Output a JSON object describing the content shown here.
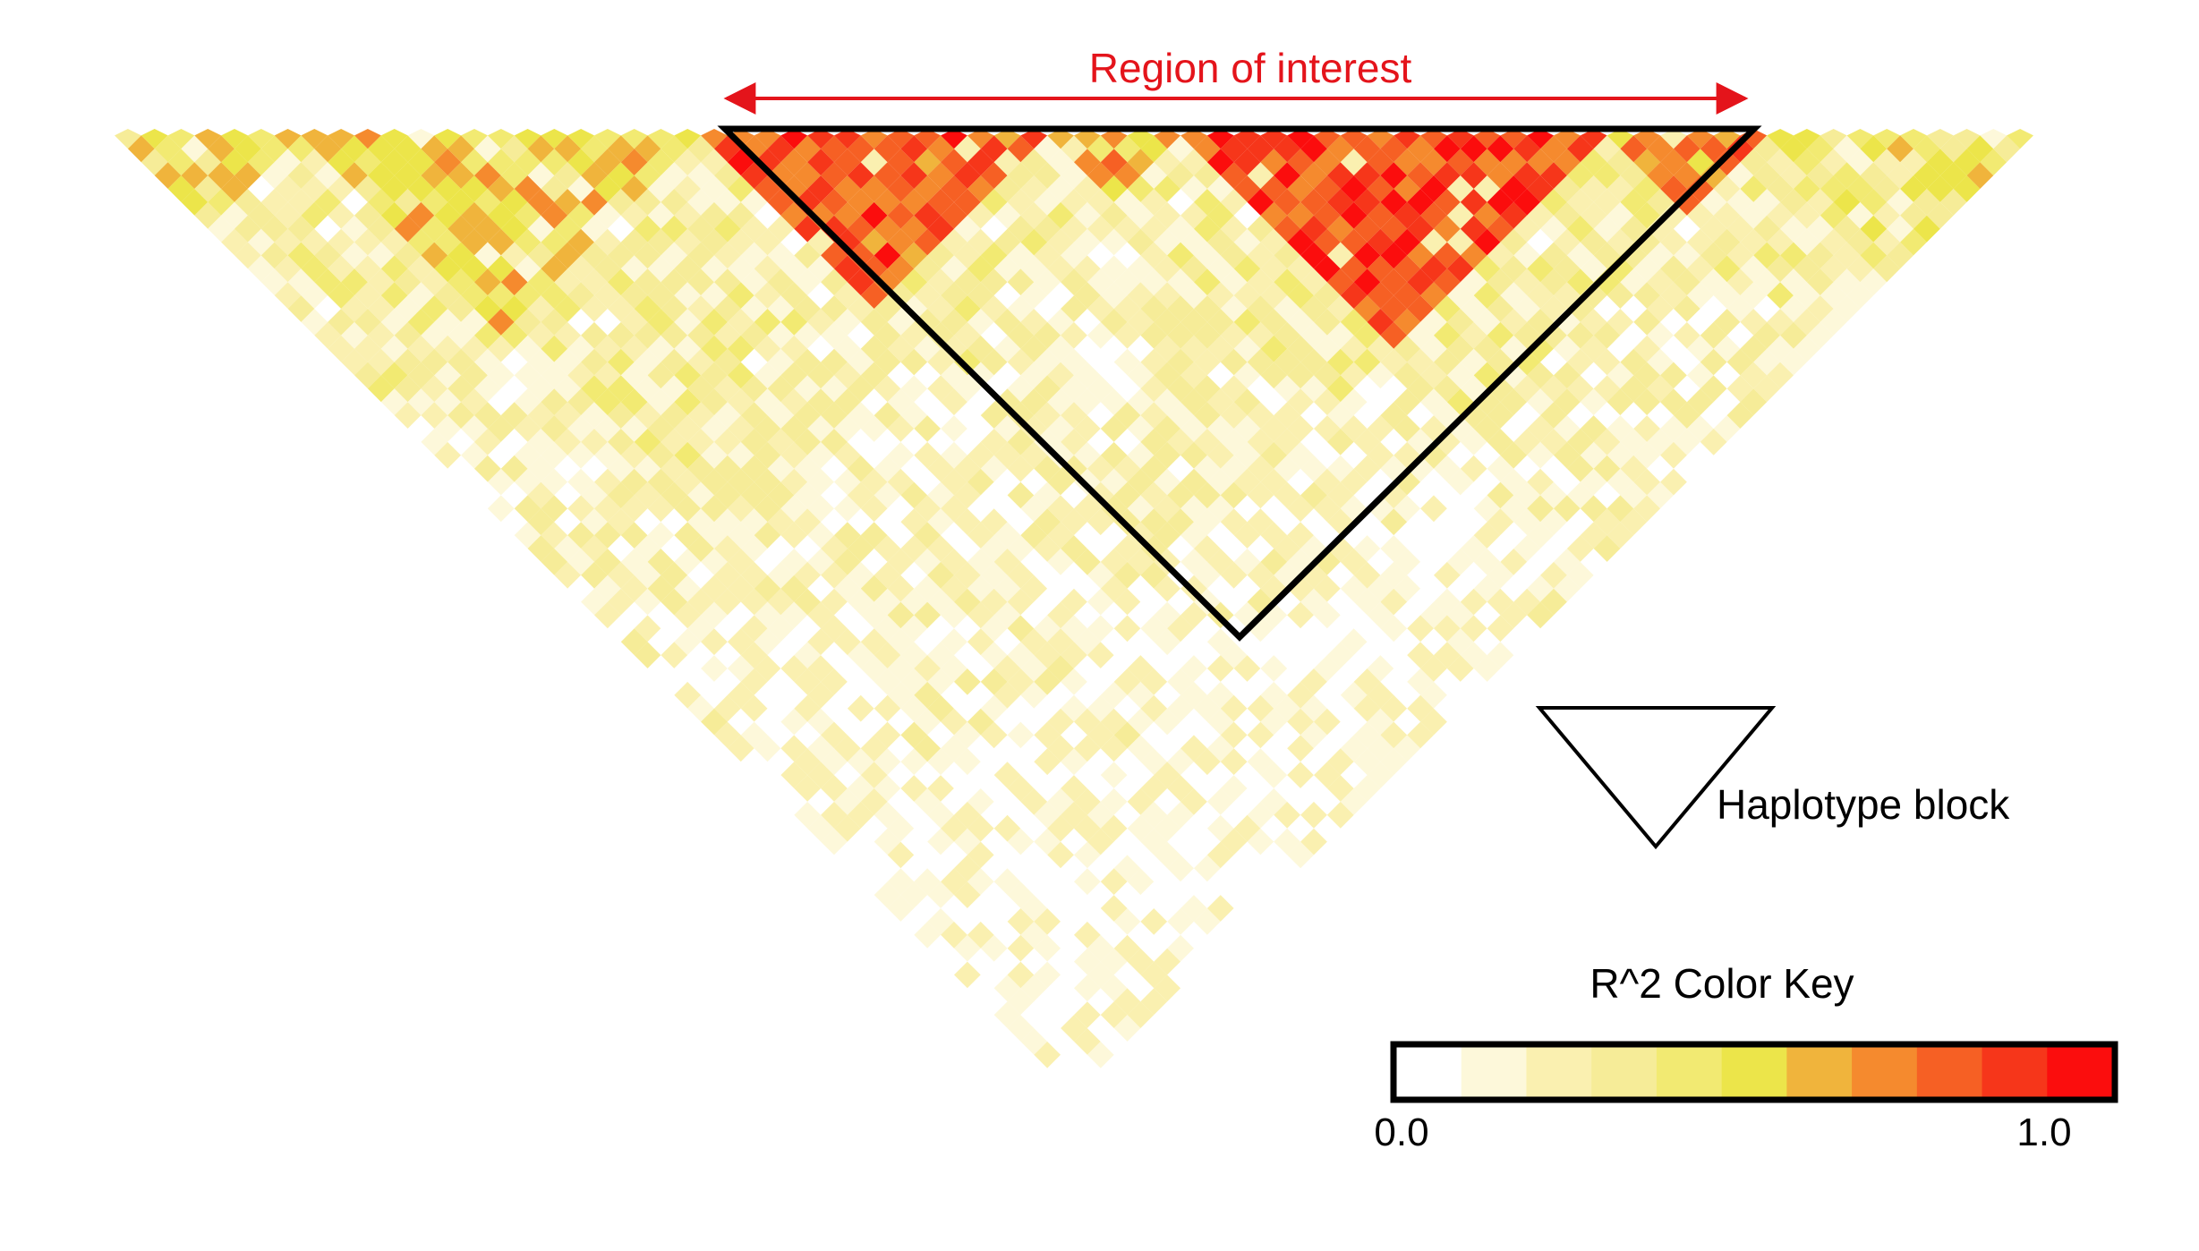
{
  "chart_data": {
    "type": "heatmap",
    "subtype": "linkage-disequilibrium-triangle",
    "annotations": {
      "region_label": "Region of interest",
      "block_label": "Haplotype block"
    },
    "color_key": {
      "title": "R^2 Color Key",
      "min_label": "0.0",
      "max_label": "1.0",
      "range": [
        0.0,
        1.0
      ],
      "colors": [
        "#ffffff",
        "#fdf8da",
        "#faf0b0",
        "#f6ec98",
        "#f2ea72",
        "#ece54a",
        "#f0b43c",
        "#f58a2e",
        "#f66024",
        "#f6361a",
        "#fb0d0d"
      ]
    },
    "region_of_interest": {
      "start_fraction": 0.318,
      "end_fraction": 0.852
    },
    "blocks": [
      {
        "start": 0.0,
        "end": 0.1,
        "r2": 0.45
      },
      {
        "start": 0.1,
        "end": 0.3,
        "r2": 0.5
      },
      {
        "start": 0.3,
        "end": 0.48,
        "r2": 0.8
      },
      {
        "start": 0.48,
        "end": 0.56,
        "r2": 0.6
      },
      {
        "start": 0.56,
        "end": 0.78,
        "r2": 0.85
      },
      {
        "start": 0.78,
        "end": 0.86,
        "r2": 0.7
      },
      {
        "start": 0.86,
        "end": 1.0,
        "r2": 0.4
      }
    ],
    "inter_block_r2": 0.28,
    "colors": {
      "annotation": "#e4141b",
      "outline": "#000000"
    }
  }
}
